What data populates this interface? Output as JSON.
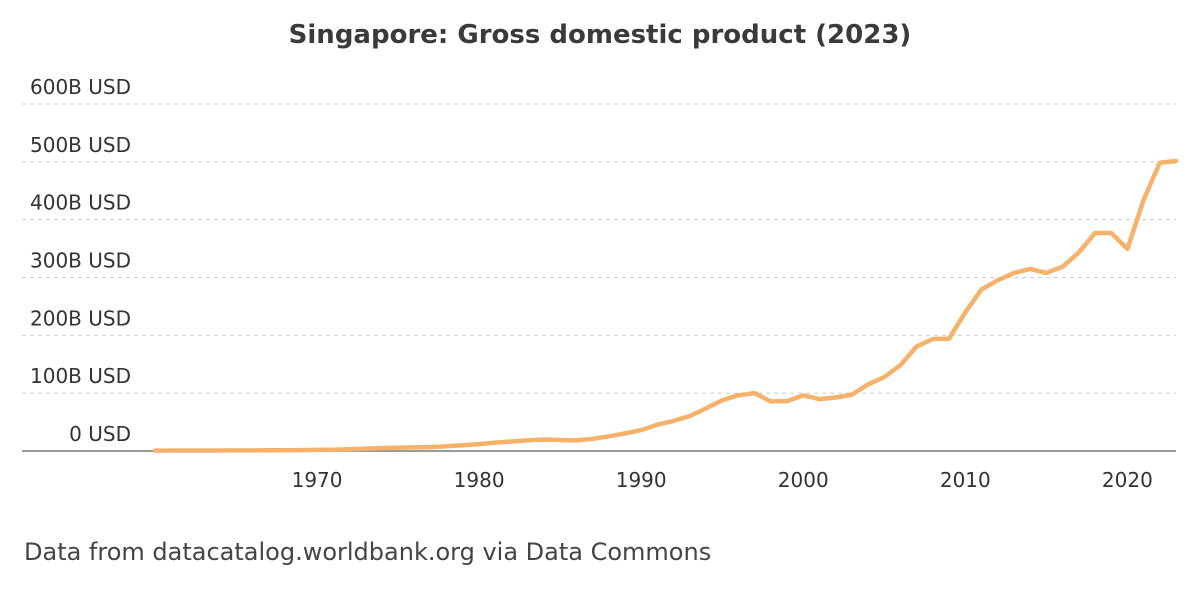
{
  "source_note": "Data from datacatalog.worldbank.org via Data Commons",
  "colors": {
    "line": "#f6b26b",
    "grid": "#cccccc",
    "axis": "#999999"
  },
  "chart_data": {
    "type": "line",
    "title": "Singapore: Gross domestic product (2023)",
    "xlabel": "",
    "ylabel": "",
    "xlim": [
      1960,
      2023
    ],
    "ylim": [
      0,
      600
    ],
    "y_unit": "B USD",
    "grid": "horizontal dashed",
    "legend": "none",
    "y_ticks": [
      {
        "value": 0,
        "label": "0 USD"
      },
      {
        "value": 100,
        "label": "100B USD"
      },
      {
        "value": 200,
        "label": "200B USD"
      },
      {
        "value": 300,
        "label": "300B USD"
      },
      {
        "value": 400,
        "label": "400B USD"
      },
      {
        "value": 500,
        "label": "500B USD"
      },
      {
        "value": 600,
        "label": "600B USD"
      }
    ],
    "x_ticks": [
      {
        "value": 1970,
        "label": "1970"
      },
      {
        "value": 1980,
        "label": "1980"
      },
      {
        "value": 1990,
        "label": "1990"
      },
      {
        "value": 2000,
        "label": "2000"
      },
      {
        "value": 2010,
        "label": "2010"
      },
      {
        "value": 2020,
        "label": "2020"
      }
    ],
    "series": [
      {
        "x": [
          1960,
          1961,
          1962,
          1963,
          1964,
          1965,
          1966,
          1967,
          1968,
          1969,
          1970,
          1971,
          1972,
          1973,
          1974,
          1975,
          1976,
          1977,
          1978,
          1979,
          1980,
          1981,
          1982,
          1983,
          1984,
          1985,
          1986,
          1987,
          1988,
          1989,
          1990,
          1991,
          1992,
          1993,
          1994,
          1995,
          1996,
          1997,
          1998,
          1999,
          2000,
          2001,
          2002,
          2003,
          2004,
          2005,
          2006,
          2007,
          2008,
          2009,
          2010,
          2011,
          2012,
          2013,
          2014,
          2015,
          2016,
          2017,
          2018,
          2019,
          2020,
          2021,
          2022,
          2023
        ],
        "values": [
          0.7,
          0.8,
          0.9,
          0.9,
          0.9,
          1.0,
          1.1,
          1.2,
          1.3,
          1.6,
          1.9,
          2.3,
          2.9,
          4.2,
          5.2,
          5.7,
          6.3,
          6.8,
          8.2,
          9.9,
          12.0,
          14.5,
          16.4,
          18.4,
          19.9,
          18.9,
          18.4,
          21.0,
          25.5,
          30.4,
          36.1,
          45.5,
          52.1,
          60.6,
          73.7,
          87.9,
          96.3,
          100.1,
          85.7,
          86.3,
          96.1,
          89.8,
          92.5,
          97.6,
          115.1,
          127.8,
          148.6,
          180.9,
          193.6,
          194.2,
          239.8,
          279.4,
          295.1,
          307.6,
          314.9,
          308.0,
          318.7,
          343.3,
          376.9,
          376.9,
          349.5,
          434.1,
          498.5,
          501.4
        ]
      }
    ]
  }
}
